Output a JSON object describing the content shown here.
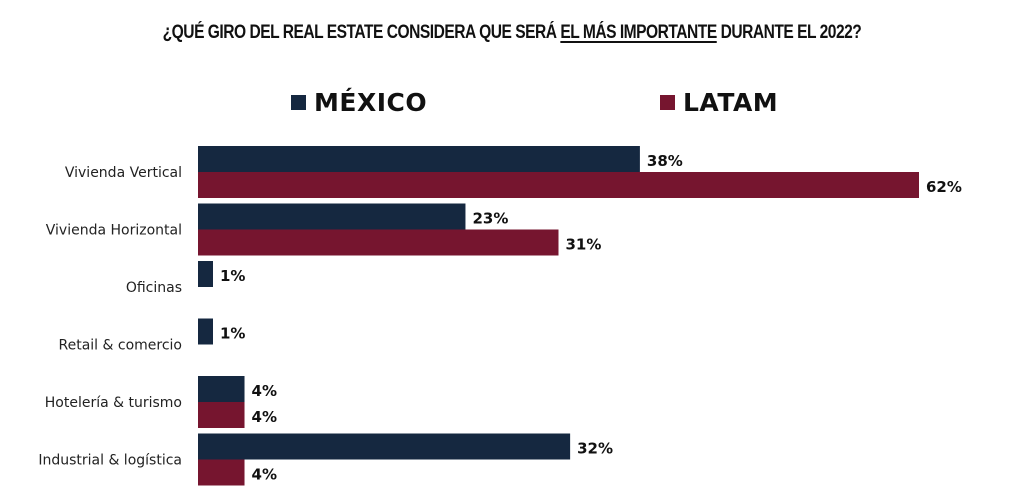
{
  "chart_data": {
    "type": "bar",
    "orientation": "horizontal",
    "title": {
      "before": "¿QUÉ GIRO DEL REAL ESTATE CONSIDERA QUE SERÁ ",
      "highlight": "EL MÁS IMPORTANTE",
      "after": " DURANTE EL 2022?"
    },
    "categories": [
      "Vivienda Vertical",
      "Vivienda Horizontal",
      "Oficinas",
      "Retail & comercio",
      "Hotelería & turismo",
      "Industrial & logística"
    ],
    "series": [
      {
        "name": "MÉXICO",
        "color": "#152840",
        "values": [
          38,
          23,
          1,
          1,
          4,
          32
        ],
        "labels": [
          "38%",
          "23%",
          "1%",
          "1%",
          "4%",
          "32%"
        ]
      },
      {
        "name": "LATAM",
        "color": "#76152f",
        "values": [
          62,
          31,
          null,
          null,
          4,
          4
        ],
        "labels": [
          "62%",
          "31%",
          null,
          null,
          "4%",
          "4%"
        ]
      }
    ],
    "value_unit": "%",
    "xlim": [
      0,
      62
    ],
    "grid": false,
    "legend_position": "top",
    "xlabel": "",
    "ylabel": ""
  }
}
